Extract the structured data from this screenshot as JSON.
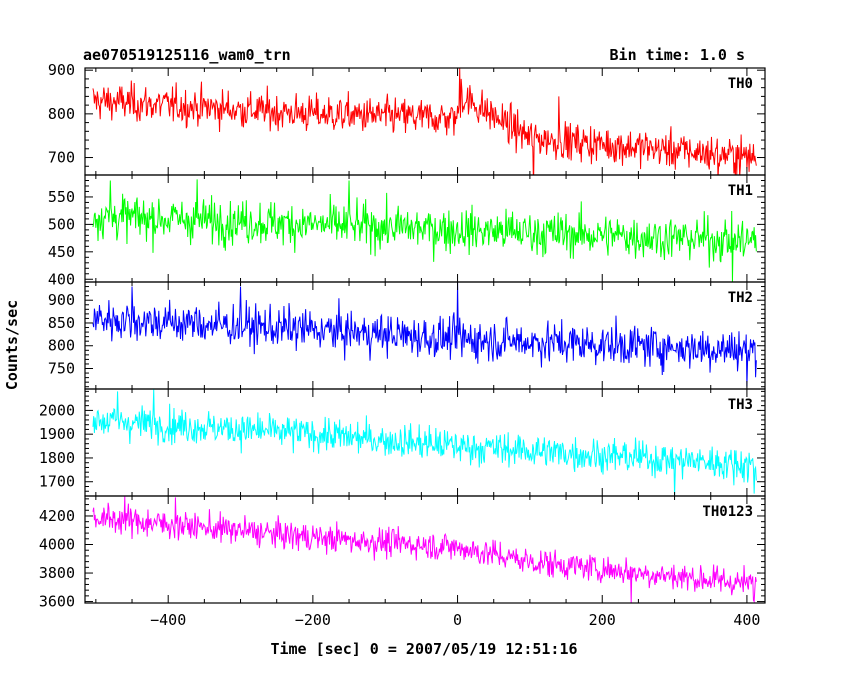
{
  "header": {
    "title": "ae070519125116_wam0_trn",
    "bin_time": "Bin time: 1.0 s"
  },
  "axes": {
    "xlabel": "Time [sec] 0 = 2007/05/19 12:51:16",
    "ylabel": "Counts/sec"
  },
  "chart_data": [
    {
      "type": "line",
      "name": "TH0",
      "color": "#ff0000",
      "xlim": [
        -515,
        425
      ],
      "ylim": [
        660,
        905
      ],
      "yticks": [
        700,
        800,
        900
      ],
      "xticks": [
        -400,
        -200,
        0,
        200,
        400
      ],
      "x_range": [
        -504,
        413
      ],
      "bin_time": 1.0,
      "trend": [
        [
          -504,
          830
        ],
        [
          -200,
          800
        ],
        [
          0,
          790
        ],
        [
          5,
          840
        ],
        [
          100,
          745
        ],
        [
          413,
          700
        ]
      ],
      "noise_sd": 30,
      "spikes": [
        [
          3,
          905
        ],
        [
          5,
          880
        ],
        [
          105,
          630
        ],
        [
          140,
          840
        ],
        [
          360,
          650
        ]
      ]
    },
    {
      "type": "line",
      "name": "TH1",
      "color": "#00ff00",
      "xlim": [
        -515,
        425
      ],
      "ylim": [
        395,
        590
      ],
      "yticks": [
        400,
        450,
        500,
        550
      ],
      "xticks": [
        -400,
        -200,
        0,
        200,
        400
      ],
      "x_range": [
        -504,
        413
      ],
      "bin_time": 1.0,
      "trend": [
        [
          -504,
          515
        ],
        [
          0,
          490
        ],
        [
          413,
          470
        ]
      ],
      "noise_sd": 28,
      "spikes": [
        [
          -480,
          580
        ],
        [
          -360,
          582
        ],
        [
          -150,
          580
        ],
        [
          380,
          395
        ]
      ]
    },
    {
      "type": "line",
      "name": "TH2",
      "color": "#0000ff",
      "xlim": [
        -515,
        425
      ],
      "ylim": [
        705,
        940
      ],
      "yticks": [
        750,
        800,
        850,
        900
      ],
      "xticks": [
        -400,
        -200,
        0,
        200,
        400
      ],
      "x_range": [
        -504,
        413
      ],
      "bin_time": 1.0,
      "trend": [
        [
          -504,
          860
        ],
        [
          -200,
          835
        ],
        [
          0,
          815
        ],
        [
          413,
          790
        ]
      ],
      "noise_sd": 32,
      "spikes": [
        [
          0,
          940
        ],
        [
          -450,
          930
        ],
        [
          -300,
          930
        ],
        [
          400,
          710
        ]
      ]
    },
    {
      "type": "line",
      "name": "TH3",
      "color": "#00ffff",
      "xlim": [
        -515,
        425
      ],
      "ylim": [
        1640,
        2090
      ],
      "yticks": [
        1700,
        1800,
        1900,
        2000
      ],
      "xticks": [
        -400,
        -200,
        0,
        200,
        400
      ],
      "x_range": [
        -504,
        413
      ],
      "bin_time": 1.0,
      "trend": [
        [
          -504,
          1960
        ],
        [
          -200,
          1900
        ],
        [
          0,
          1850
        ],
        [
          413,
          1770
        ]
      ],
      "noise_sd": 50,
      "spikes": [
        [
          -470,
          2080
        ],
        [
          -420,
          2090
        ],
        [
          300,
          1640
        ],
        [
          410,
          1650
        ]
      ]
    },
    {
      "type": "line",
      "name": "TH0123",
      "color": "#ff00ff",
      "xlim": [
        -515,
        425
      ],
      "ylim": [
        3590,
        4340
      ],
      "yticks": [
        3600,
        3800,
        4000,
        4200
      ],
      "xticks": [
        -400,
        -200,
        0,
        200,
        400
      ],
      "x_range": [
        -504,
        413
      ],
      "bin_time": 1.0,
      "trend": [
        [
          -504,
          4190
        ],
        [
          -200,
          4050
        ],
        [
          0,
          3980
        ],
        [
          100,
          3880
        ],
        [
          413,
          3720
        ]
      ],
      "noise_sd": 70,
      "spikes": [
        [
          -460,
          4340
        ],
        [
          -390,
          4330
        ],
        [
          240,
          3590
        ],
        [
          410,
          3600
        ]
      ]
    }
  ]
}
